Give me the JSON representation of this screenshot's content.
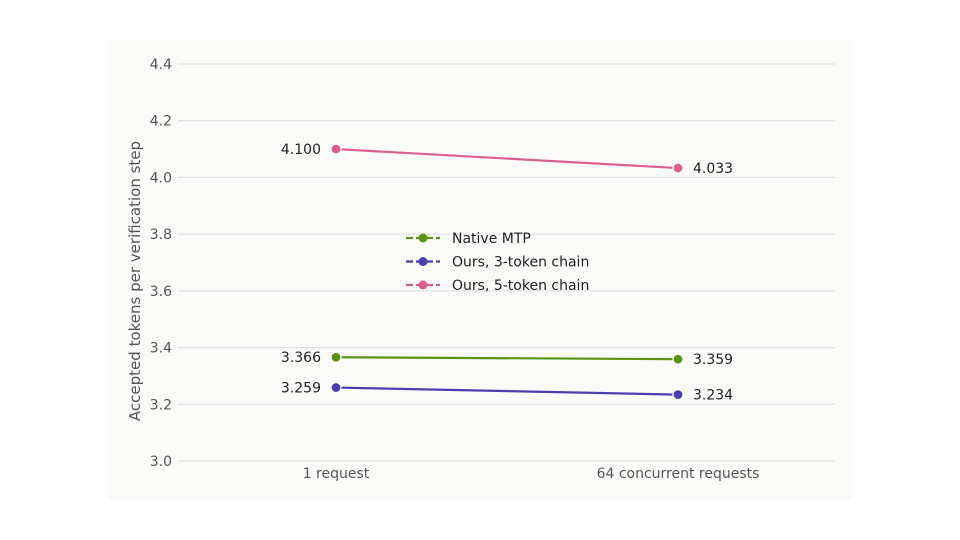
{
  "chart_data": {
    "type": "line",
    "title": "",
    "xlabel": "",
    "ylabel": "Accepted tokens per verification step",
    "categories": [
      "1 request",
      "64 concurrent requests"
    ],
    "ylim": [
      3.0,
      4.4
    ],
    "yticks": [
      3.0,
      3.2,
      3.4,
      3.6,
      3.8,
      4.0,
      4.2,
      4.4
    ],
    "ytick_labels": [
      "3.0",
      "3.2",
      "3.4",
      "3.6",
      "3.8",
      "4.0",
      "4.2",
      "4.4"
    ],
    "grid": true,
    "legend_position": "center",
    "series": [
      {
        "name": "Native MTP",
        "color": "#5b9313",
        "values": [
          3.366,
          3.359
        ],
        "labels": [
          "3.366",
          "3.359"
        ]
      },
      {
        "name": "Ours, 3-token chain",
        "color": "#4b3fb0",
        "values": [
          3.259,
          3.234
        ],
        "labels": [
          "3.259",
          "3.234"
        ]
      },
      {
        "name": "Ours, 5-token chain",
        "color": "#d95f8e",
        "values": [
          4.1,
          4.033
        ],
        "labels": [
          "4.100",
          "4.033"
        ]
      }
    ]
  }
}
